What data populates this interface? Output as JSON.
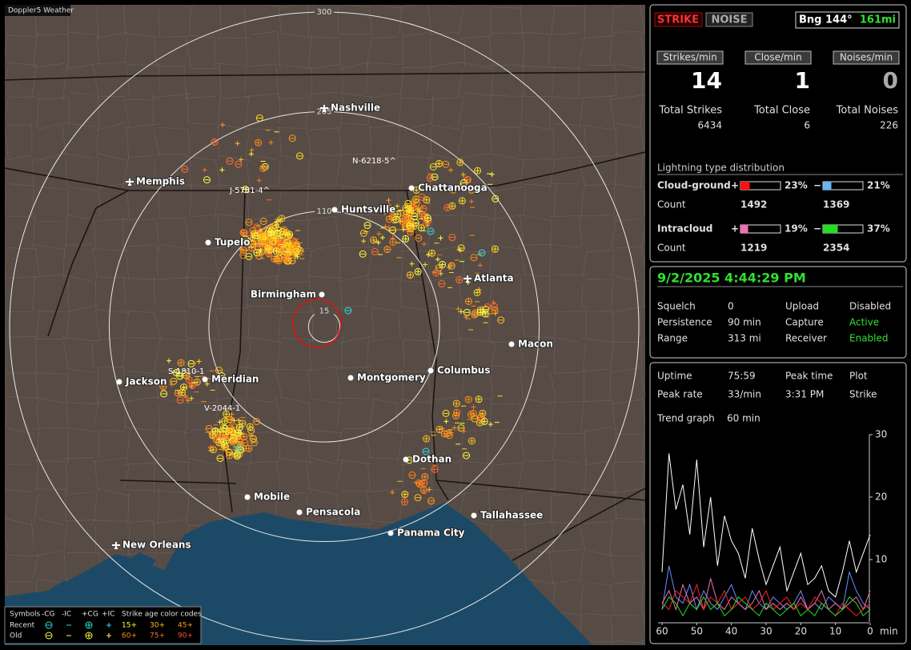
{
  "app_title": "Doppler5 Weather",
  "map": {
    "range_rings": [
      300,
      205,
      110,
      15
    ],
    "cities": [
      "Nashville",
      "Memphis",
      "Chattanooga",
      "Huntsville",
      "Tupelo",
      "Atlanta",
      "Birmingham",
      "Macon",
      "Jackson",
      "Meridian",
      "Montgomery",
      "Columbus",
      "Dothan",
      "Mobile",
      "Pensacola",
      "Tallahassee",
      "Panama City",
      "New Orleans"
    ],
    "storm_labels": [
      "N-6218-5^",
      "J-5781-4^",
      "S-1810-1",
      "V-2044-1"
    ],
    "legend": {
      "symbols_title": "Symbols",
      "symbol_types": [
        "-CG",
        "-IC",
        "+CG",
        "+IC"
      ],
      "age_title": "Strike age color codes",
      "rows": [
        "Recent",
        "Old"
      ],
      "ages": [
        {
          "label": "15+",
          "color": "#ffff40"
        },
        {
          "label": "30+",
          "color": "#ffc020"
        },
        {
          "label": "45+",
          "color": "#ff9a20"
        },
        {
          "label": "60+",
          "color": "#ff8a10"
        },
        {
          "label": "75+",
          "color": "#ff7030"
        },
        {
          "label": "90+",
          "color": "#ff5030"
        }
      ]
    }
  },
  "status": {
    "strike_button": "STRIKE",
    "noise_button": "NOISE",
    "bearing": "Bng 144°",
    "distance": "161mi"
  },
  "rates": [
    {
      "label": "Strikes/min",
      "value": 14,
      "total_label": "Total Strikes",
      "total": 6434
    },
    {
      "label": "Close/min",
      "value": 1,
      "total_label": "Total Close",
      "total": 6
    },
    {
      "label": "Noises/min",
      "value": 0,
      "total_label": "Total Noises",
      "total": 226
    }
  ],
  "distribution": {
    "title": "Lightning type distribution",
    "count_label": "Count",
    "signs": [
      "+",
      "−"
    ],
    "rows": [
      {
        "name": "Cloud-ground",
        "pos": {
          "pct": 23,
          "pct_label": "23%",
          "count": 1492,
          "color": "#ff1010"
        },
        "neg": {
          "pct": 21,
          "pct_label": "21%",
          "count": 1369,
          "color": "#6ab4f0"
        }
      },
      {
        "name": "Intracloud",
        "pos": {
          "pct": 19,
          "pct_label": "19%",
          "count": 1219,
          "color": "#f070b0"
        },
        "neg": {
          "pct": 37,
          "pct_label": "37%",
          "count": 2354,
          "color": "#20e020"
        }
      }
    ]
  },
  "clock": "9/2/2025 4:44:29 PM",
  "settings": [
    [
      "Squelch",
      "0",
      "Upload",
      "Disabled"
    ],
    [
      "Persistence",
      "90 min",
      "Capture",
      "Active"
    ],
    [
      "Range",
      "313 mi",
      "Receiver",
      "Enabled"
    ]
  ],
  "stats": [
    [
      "Uptime",
      "75:59",
      "Peak time",
      "Plot"
    ],
    [
      "Peak rate",
      "33/min",
      "3:31 PM",
      "Strike"
    ]
  ],
  "trend_label": [
    "Trend graph",
    "60 min"
  ],
  "trend": {
    "ylim": [
      0,
      30
    ],
    "yticks": [
      10,
      20,
      30
    ],
    "xlim": [
      60,
      0
    ],
    "xticks": [
      60,
      50,
      40,
      30,
      20,
      10,
      0
    ],
    "x_unit": "min",
    "x": [
      60,
      58,
      56,
      54,
      52,
      50,
      48,
      46,
      44,
      42,
      40,
      38,
      36,
      34,
      32,
      30,
      28,
      26,
      24,
      22,
      20,
      18,
      16,
      14,
      12,
      10,
      8,
      6,
      4,
      2,
      0
    ],
    "series": [
      {
        "color": "#ffffff",
        "values": [
          8,
          27,
          18,
          22,
          14,
          26,
          12,
          20,
          9,
          17,
          13,
          11,
          7,
          15,
          10,
          6,
          9,
          12,
          5,
          8,
          11,
          6,
          7,
          9,
          5,
          4,
          8,
          13,
          8,
          11,
          14
        ]
      },
      {
        "color": "#6a8cff",
        "values": [
          2,
          9,
          4,
          3,
          6,
          2,
          5,
          3,
          2,
          4,
          6,
          3,
          2,
          5,
          3,
          2,
          4,
          3,
          2,
          3,
          5,
          2,
          3,
          2,
          4,
          3,
          2,
          8,
          5,
          3,
          2
        ]
      },
      {
        "color": "#f070b0",
        "values": [
          3,
          5,
          2,
          6,
          3,
          4,
          2,
          7,
          3,
          2,
          4,
          3,
          2,
          3,
          5,
          2,
          3,
          2,
          3,
          2,
          4,
          2,
          3,
          5,
          2,
          3,
          2,
          3,
          4,
          2,
          5
        ]
      },
      {
        "color": "#ff2020",
        "values": [
          3,
          2,
          5,
          4,
          3,
          6,
          2,
          4,
          3,
          5,
          2,
          3,
          4,
          2,
          3,
          5,
          2,
          3,
          4,
          2,
          3,
          2,
          4,
          3,
          2,
          1,
          3,
          2,
          1,
          2,
          3
        ]
      },
      {
        "color": "#20e020",
        "values": [
          2,
          4,
          3,
          1,
          3,
          2,
          4,
          2,
          3,
          1,
          2,
          4,
          3,
          2,
          1,
          3,
          2,
          1,
          2,
          3,
          1,
          2,
          1,
          3,
          2,
          1,
          2,
          4,
          3,
          1,
          2
        ]
      }
    ]
  }
}
